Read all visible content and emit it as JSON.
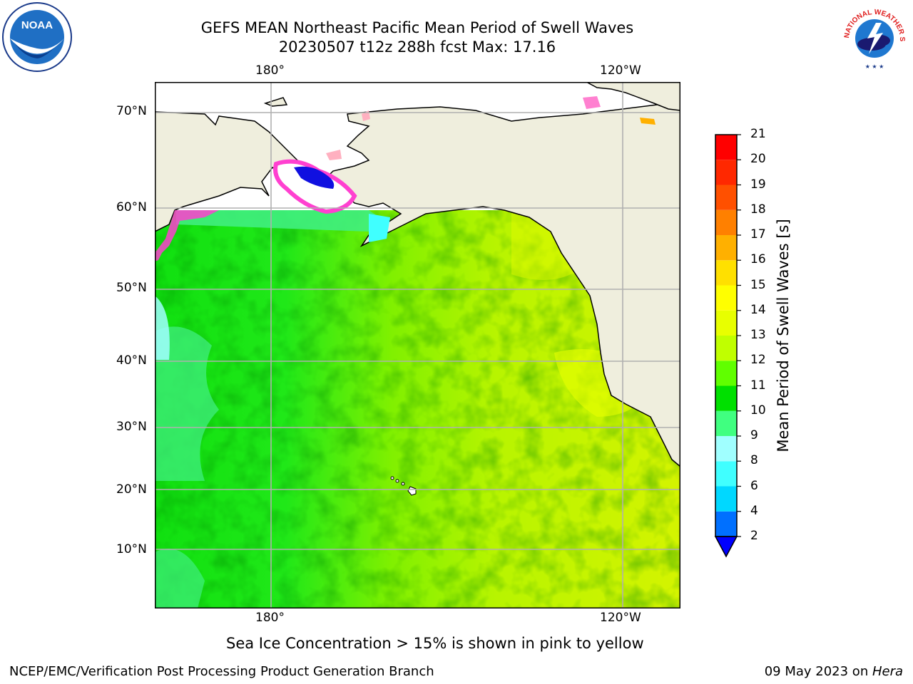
{
  "title_line1": "GEFS MEAN Northeast Pacific Mean Period of Swell Waves",
  "title_line2": "20230507 t12z 288h fcst   Max: 17.16",
  "lon_labels": [
    "180°",
    "120°W"
  ],
  "lat_labels": [
    "70°N",
    "60°N",
    "50°N",
    "40°N",
    "30°N",
    "20°N",
    "10°N"
  ],
  "colorbar": {
    "label": "Mean Period of Swell Waves [s]",
    "ticks": [
      "2",
      "4",
      "6",
      "8",
      "9",
      "10",
      "11",
      "12",
      "13",
      "14",
      "15",
      "16",
      "17",
      "18",
      "19",
      "20",
      "21"
    ],
    "colors": [
      "#0000ff",
      "#0070ff",
      "#00d8ff",
      "#40ffff",
      "#a0ffff",
      "#40ff80",
      "#00e000",
      "#60ff00",
      "#c0ff00",
      "#e8ff00",
      "#ffff00",
      "#ffe000",
      "#ffb000",
      "#ff8000",
      "#ff5000",
      "#ff2800",
      "#ff0000"
    ]
  },
  "note": "Sea Ice Concentration > 15% is shown in pink to yellow",
  "footer_left": "NCEP/EMC/Verification Post Processing Product Generation Branch",
  "footer_date": "09 May 2023 on ",
  "footer_host": "Hera",
  "logos": {
    "noaa": "NOAA",
    "nws": "NATIONAL WEATHER SERVICE"
  }
}
